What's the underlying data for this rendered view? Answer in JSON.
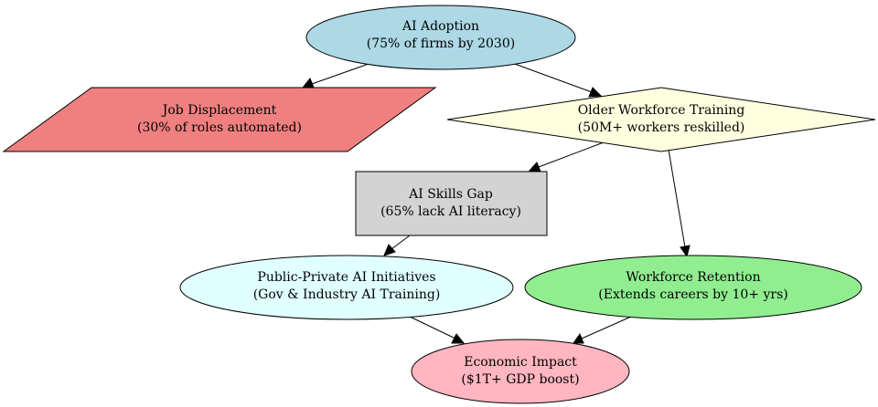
{
  "diagram": {
    "nodes": {
      "ai_adoption": {
        "line1": "AI Adoption",
        "line2": "(75% of firms by 2030)",
        "color": "#add8e6"
      },
      "job_displacement": {
        "line1": "Job Displacement",
        "line2": "(30% of roles automated)",
        "color": "#f08080"
      },
      "older_workforce_training": {
        "line1": "Older Workforce Training",
        "line2": "(50M+ workers reskilled)",
        "color": "#ffffe0"
      },
      "ai_skills_gap": {
        "line1": "AI Skills Gap",
        "line2": "(65% lack AI literacy)",
        "color": "#d3d3d3"
      },
      "public_private_initiatives": {
        "line1": "Public-Private AI Initiatives",
        "line2": "(Gov & Industry AI Training)",
        "color": "#e0ffff"
      },
      "workforce_retention": {
        "line1": "Workforce Retention",
        "line2": "(Extends careers by 10+ yrs)",
        "color": "#90ee90"
      },
      "economic_impact": {
        "line1": "Economic Impact",
        "line2": "($1T+ GDP boost)",
        "color": "#ffb6c1"
      }
    },
    "edges": [
      {
        "from": "ai_adoption",
        "to": "job_displacement"
      },
      {
        "from": "ai_adoption",
        "to": "older_workforce_training"
      },
      {
        "from": "older_workforce_training",
        "to": "ai_skills_gap"
      },
      {
        "from": "older_workforce_training",
        "to": "workforce_retention"
      },
      {
        "from": "ai_skills_gap",
        "to": "public_private_initiatives"
      },
      {
        "from": "public_private_initiatives",
        "to": "economic_impact"
      },
      {
        "from": "workforce_retention",
        "to": "economic_impact"
      }
    ]
  }
}
